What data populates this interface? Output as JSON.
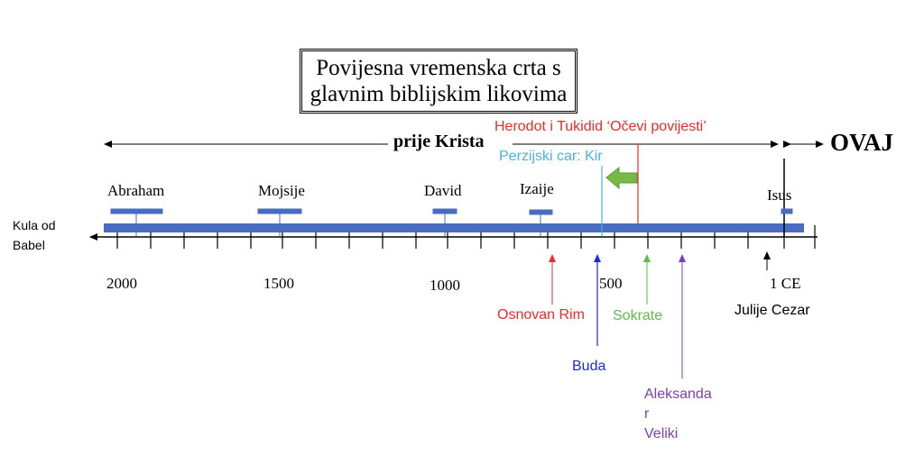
{
  "title": {
    "line1": "Povijesna vremenska crta s",
    "line2": "glavnim biblijskim likovima"
  },
  "era_before": "prije Krista",
  "era_now": "OVAJ",
  "left_end_label": {
    "line1": "Kula od",
    "line2": "Babel"
  },
  "year_labels": [
    "2000",
    "1500",
    "1000",
    "500",
    "1 CE"
  ],
  "figures_above": [
    "Abraham",
    "Mojsije",
    "David",
    "Izaije",
    "Isus"
  ],
  "events_above": {
    "herodot": "Herodot i Tukidid ‘Očevi povijesti’",
    "kir": "Perzijski car: Kir"
  },
  "events_below": {
    "rim": "Osnovan Rim",
    "buda": "Buda",
    "sokrate": "Sokrate",
    "cezar": "Julije Cezar",
    "aleksandar": [
      "Aleksanda",
      "r",
      "Veliki"
    ]
  },
  "colors": {
    "timeline_bar": "#4a6cc0",
    "red": "#ec2b2b",
    "light_blue": "#4ab0e8",
    "dark_blue": "#1f2bd1",
    "green": "#5dbb4a",
    "purple": "#7a3fb0",
    "black": "#000000"
  }
}
